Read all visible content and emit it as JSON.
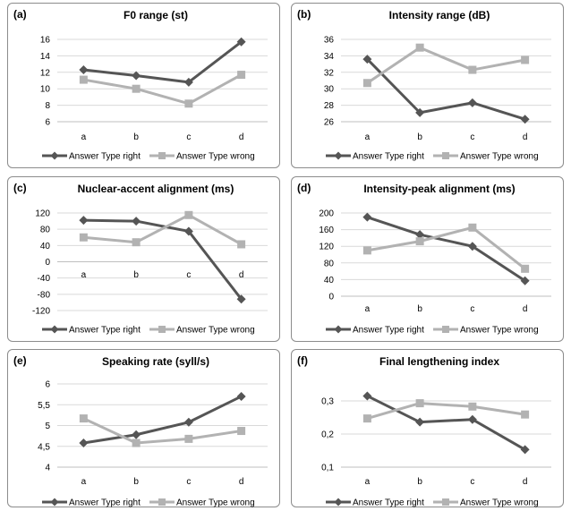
{
  "colors": {
    "right": "#555555",
    "wrong": "#b2b2b2",
    "grid": "#d9d9d9",
    "axis": "#bfbfbf"
  },
  "legend": {
    "right": "Answer Type right",
    "wrong": "Answer Type wrong"
  },
  "chart_data": [
    {
      "id": "a",
      "letter": "(a)",
      "type": "line",
      "title": "F0 range (st)",
      "categories": [
        "a",
        "b",
        "c",
        "d"
      ],
      "ylim": [
        6,
        16
      ],
      "yticks": [
        "6",
        "8",
        "10",
        "12",
        "14",
        "16"
      ],
      "series": [
        {
          "name": "Answer Type right",
          "values": [
            12.3,
            11.6,
            10.8,
            15.7
          ]
        },
        {
          "name": "Answer Type wrong",
          "values": [
            11.1,
            10.0,
            8.2,
            11.7
          ]
        }
      ]
    },
    {
      "id": "b",
      "letter": "(b)",
      "type": "line",
      "title": "Intensity range (dB)",
      "categories": [
        "a",
        "b",
        "c",
        "d"
      ],
      "ylim": [
        26,
        36
      ],
      "yticks": [
        "26",
        "28",
        "30",
        "32",
        "34",
        "36"
      ],
      "series": [
        {
          "name": "Answer Type right",
          "values": [
            33.6,
            27.1,
            28.3,
            26.3
          ]
        },
        {
          "name": "Answer Type wrong",
          "values": [
            30.7,
            35.0,
            32.3,
            33.5
          ]
        }
      ]
    },
    {
      "id": "c",
      "letter": "(c)",
      "type": "line",
      "title": "Nuclear-accent alignment (ms)",
      "categories": [
        "a",
        "b",
        "c",
        "d"
      ],
      "ylim": [
        -120,
        120
      ],
      "yticks": [
        "-120",
        "-80",
        "-40",
        "0",
        "40",
        "80",
        "120"
      ],
      "series": [
        {
          "name": "Answer Type right",
          "values": [
            102,
            100,
            75,
            -92
          ]
        },
        {
          "name": "Answer Type wrong",
          "values": [
            60,
            48,
            115,
            43
          ]
        }
      ]
    },
    {
      "id": "d",
      "letter": "(d)",
      "type": "line",
      "title": "Intensity-peak alignment (ms)",
      "categories": [
        "a",
        "b",
        "c",
        "d"
      ],
      "ylim": [
        0,
        200
      ],
      "yticks": [
        "0",
        "40",
        "80",
        "120",
        "160",
        "200"
      ],
      "series": [
        {
          "name": "Answer Type right",
          "values": [
            190,
            148,
            120,
            37
          ]
        },
        {
          "name": "Answer Type wrong",
          "values": [
            110,
            132,
            165,
            66
          ]
        }
      ]
    },
    {
      "id": "e",
      "letter": "(e)",
      "type": "line",
      "title": "Speaking rate (syll/s)",
      "categories": [
        "a",
        "b",
        "c",
        "d"
      ],
      "ylim": [
        4,
        6
      ],
      "yticks": [
        "4",
        "4,5",
        "5",
        "5,5",
        "6"
      ],
      "series": [
        {
          "name": "Answer Type right",
          "values": [
            4.58,
            4.78,
            5.08,
            5.7
          ]
        },
        {
          "name": "Answer Type wrong",
          "values": [
            5.17,
            4.58,
            4.68,
            4.87
          ]
        }
      ]
    },
    {
      "id": "f",
      "letter": "(f)",
      "type": "line",
      "title": "Final lengthening index",
      "categories": [
        "a",
        "b",
        "c",
        "d"
      ],
      "ylim": [
        0.1,
        0.3
      ],
      "yticks": [
        "0,1",
        "0,2",
        "0,3"
      ],
      "series": [
        {
          "name": "Answer Type right",
          "values": [
            0.315,
            0.236,
            0.244,
            0.153
          ]
        },
        {
          "name": "Answer Type wrong",
          "values": [
            0.247,
            0.293,
            0.283,
            0.259
          ]
        }
      ]
    }
  ]
}
